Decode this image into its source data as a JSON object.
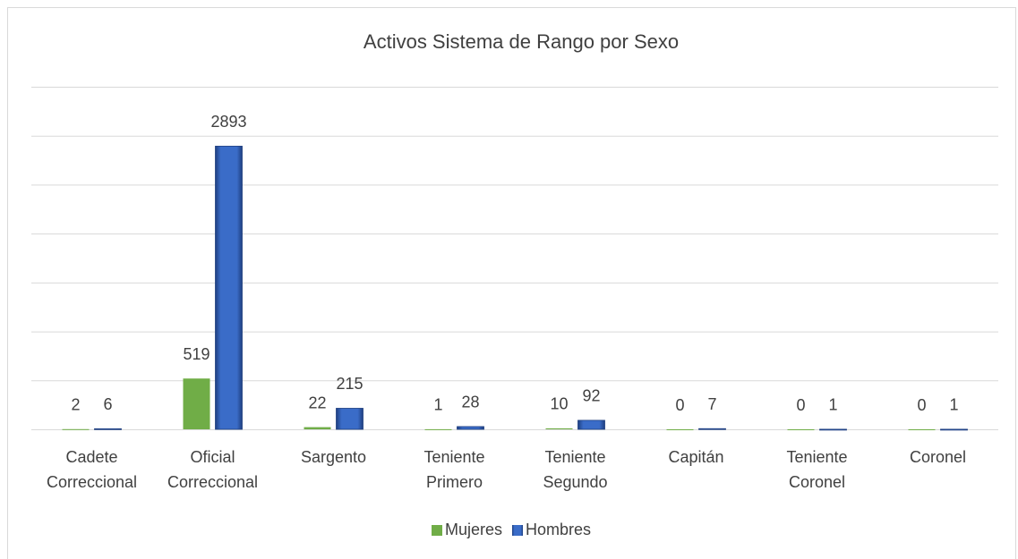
{
  "chart_data": {
    "type": "bar",
    "title": "Activos Sistema de Rango por Sexo",
    "categories": [
      "Cadete Correccional",
      "Oficial Correccional",
      "Sargento",
      "Teniente Primero",
      "Teniente Segundo",
      "Capitán",
      "Teniente Coronel",
      "Coronel"
    ],
    "series": [
      {
        "name": "Mujeres",
        "color": "#70ad47",
        "values": [
          2,
          519,
          22,
          1,
          10,
          0,
          0,
          0
        ]
      },
      {
        "name": "Hombres",
        "color": "#2f5fb3",
        "values": [
          6,
          2893,
          215,
          28,
          92,
          7,
          1,
          1
        ]
      }
    ],
    "ylim": [
      0,
      3500
    ],
    "yticks": [
      0,
      500,
      1000,
      1500,
      2000,
      2500,
      3000,
      3500
    ],
    "grid": true,
    "legend": "bottom"
  }
}
